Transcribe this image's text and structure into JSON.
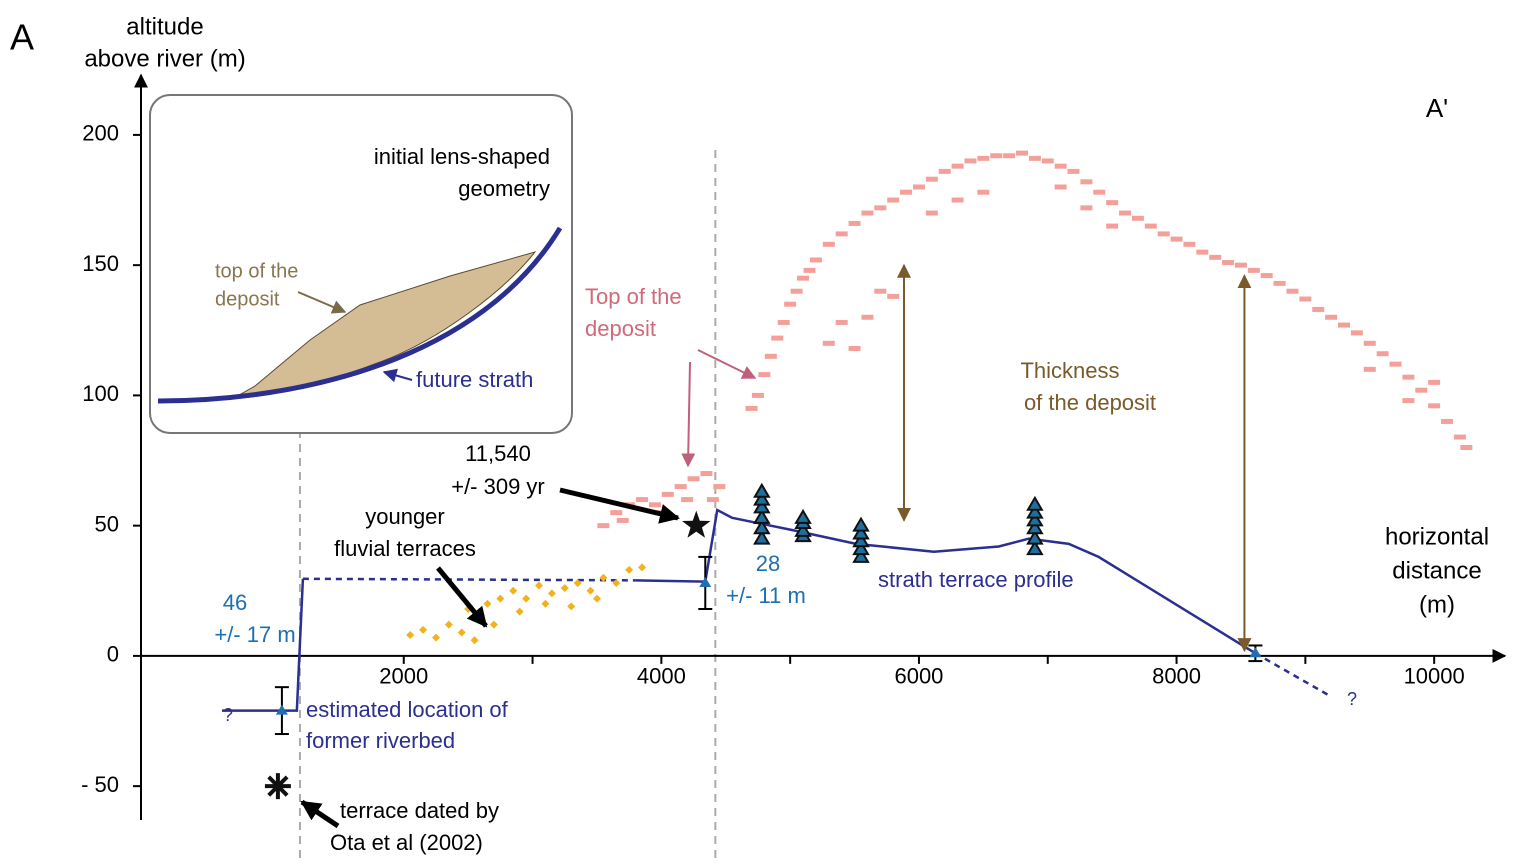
{
  "chart_data": {
    "type": "scatter",
    "panel_label": "A",
    "y_label": [
      "altitude",
      "above river (m)"
    ],
    "x_label": [
      "horizontal",
      "distance",
      "(m)"
    ],
    "section_start": "A",
    "section_end": "A'",
    "xlim": [
      -40,
      10550
    ],
    "ylim": [
      -63,
      223
    ],
    "xticks": [
      2000,
      4000,
      6000,
      8000,
      10000
    ],
    "xminorticks": [
      3000,
      5000,
      7000,
      9000
    ],
    "yticks": [
      {
        "value": -50,
        "label": "- 50"
      },
      0,
      50,
      100,
      150,
      200
    ],
    "series": [
      {
        "color": "#f4a09a",
        "marker": "rect",
        "x": [
          3550,
          3650,
          3750,
          3850,
          3950,
          4050,
          4150,
          4250,
          4350,
          4450,
          3700,
          4000,
          4200,
          4400,
          4700,
          4750,
          4800,
          4850,
          4900,
          4950,
          5000,
          5050,
          5100,
          5150,
          5200,
          5300,
          5400,
          5500,
          5600,
          5700,
          5800,
          5900,
          6000,
          6100,
          6200,
          6300,
          6400,
          6500,
          6600,
          6700,
          6800,
          6900,
          7000,
          7100,
          7200,
          7300,
          7400,
          7500,
          7600,
          7700,
          7800,
          7900,
          8000,
          8100,
          8200,
          8300,
          8400,
          8500,
          8600,
          8700,
          8800,
          8900,
          9000,
          9100,
          9200,
          9300,
          9400,
          9500,
          9600,
          9700,
          9800,
          9900,
          10000,
          10100,
          10200,
          10250,
          5300,
          5400,
          5500,
          5600,
          5700,
          5800,
          6100,
          6300,
          6500,
          7100,
          7300,
          7500,
          9500,
          9800,
          10000
        ],
        "values": [
          50,
          55,
          58,
          60,
          58,
          62,
          65,
          68,
          70,
          65,
          52,
          55,
          60,
          60,
          95,
          100,
          108,
          115,
          122,
          128,
          135,
          140,
          145,
          148,
          152,
          158,
          162,
          166,
          170,
          172,
          175,
          178,
          180,
          183,
          186,
          188,
          190,
          191,
          192,
          192,
          193,
          191,
          190,
          188,
          186,
          182,
          178,
          174,
          170,
          168,
          165,
          162,
          160,
          158,
          155,
          153,
          151,
          150,
          148,
          146,
          143,
          140,
          137,
          133,
          130,
          127,
          124,
          120,
          116,
          112,
          107,
          102,
          96,
          90,
          84,
          80,
          120,
          128,
          118,
          130,
          140,
          138,
          170,
          175,
          178,
          180,
          172,
          165,
          110,
          98,
          105
        ]
      },
      {
        "color": "#f2b21e",
        "marker": "diamond",
        "x": [
          2050,
          2150,
          2250,
          2350,
          2450,
          2550,
          2600,
          2700,
          2500,
          2650,
          2750,
          2850,
          2950,
          3050,
          3150,
          3250,
          3350,
          3450,
          3550,
          3650,
          3750,
          3850,
          2900,
          3100,
          3300,
          3500
        ],
        "values": [
          8,
          10,
          7,
          12,
          9,
          6,
          14,
          12,
          18,
          20,
          22,
          25,
          22,
          27,
          24,
          26,
          28,
          25,
          30,
          28,
          33,
          34,
          17,
          20,
          19,
          22
        ]
      },
      {
        "color": "#1e6fa0",
        "marker": "triangle",
        "x": [
          4780,
          4780,
          4780,
          4780,
          4780,
          4780,
          5100,
          5100,
          5100,
          5100,
          5550,
          5550,
          5550,
          5550,
          5550,
          6900,
          6900,
          6900,
          6900,
          6900,
          6900
        ],
        "values": [
          45,
          49,
          53,
          57,
          60,
          63,
          46,
          48,
          51,
          53,
          38,
          41,
          44,
          47,
          50,
          41,
          45,
          49,
          52,
          55,
          58
        ]
      }
    ],
    "lines": [
      {
        "color": "#2b2f8f",
        "dash": false,
        "x": [
          589,
          1170,
          1217
        ],
        "values": [
          -21,
          -21,
          29.6
        ]
      },
      {
        "color": "#2b2f8f",
        "dash": true,
        "x": [
          1217,
          3800
        ],
        "values": [
          29.6,
          29
        ]
      },
      {
        "color": "#2b2f8f",
        "dash": false,
        "x": [
          3800,
          4341,
          4434,
          4550,
          5047,
          5512,
          6116,
          6620,
          6853,
          7163,
          7395,
          8612
        ],
        "values": [
          29,
          28.5,
          56,
          53,
          48,
          43,
          40,
          42,
          45,
          43,
          38,
          1
        ]
      },
      {
        "color": "#2b2f8f",
        "dash": true,
        "x": [
          8612,
          9178
        ],
        "values": [
          1,
          -15
        ]
      }
    ],
    "error_bars": [
      {
        "x": 1054,
        "value": -21,
        "error": 9
      },
      {
        "x": 4341,
        "value": 28,
        "error": 10
      },
      {
        "x": 8612,
        "value": 1,
        "error": 3
      }
    ],
    "star": {
      "x": 4271,
      "value": 50
    },
    "asterisk": {
      "x": 1023,
      "value": -50
    },
    "ref_lines": [
      1194,
      4419
    ],
    "thickness_arrows": [
      {
        "x": 5884,
        "from": 150,
        "to": 52
      },
      {
        "x": 8527,
        "from": 146,
        "to": 2
      }
    ],
    "annotations": {
      "age": [
        "11,540",
        "+/- 309 yr"
      ],
      "younger": [
        "younger",
        "fluvial terraces"
      ],
      "top": [
        "Top of the",
        "deposit"
      ],
      "thickness": [
        "Thickness",
        "of the deposit"
      ],
      "strath": "strath terrace profile",
      "left_offset": [
        "46",
        "+/- 17 m"
      ],
      "mid_offset": [
        "28",
        "+/- 11 m"
      ],
      "riverbed": [
        "estimated location of",
        "former riverbed"
      ],
      "dated": [
        "terrace dated by",
        "Ota et al (2002)"
      ],
      "q_left": "?",
      "q_right": "?"
    },
    "inset": {
      "title": [
        "initial lens-shaped",
        "geometry"
      ],
      "top_label": [
        "top of the",
        "deposit"
      ],
      "strath_label": "future strath"
    }
  }
}
